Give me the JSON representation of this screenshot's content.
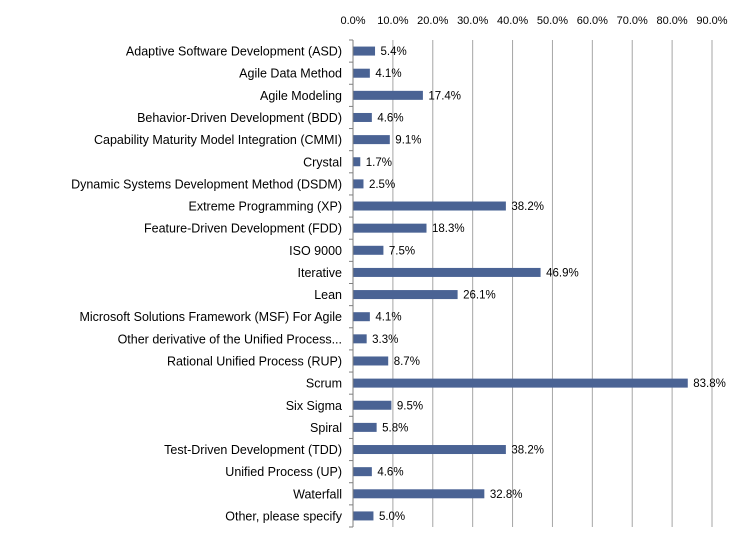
{
  "chart_data": {
    "type": "bar",
    "orientation": "horizontal",
    "title": "",
    "xlabel": "",
    "ylabel": "",
    "xlim": [
      0,
      90
    ],
    "x_ticks": [
      "0.0%",
      "10.0%",
      "20.0%",
      "30.0%",
      "40.0%",
      "50.0%",
      "60.0%",
      "70.0%",
      "80.0%",
      "90.0%"
    ],
    "x_axis_position": "top",
    "grid": true,
    "legend": "none",
    "bar_color": "#4a6394",
    "categories": [
      "Adaptive Software Development (ASD)",
      "Agile Data Method",
      "Agile Modeling",
      "Behavior-Driven Development (BDD)",
      "Capability Maturity Model Integration (CMMI)",
      "Crystal",
      "Dynamic Systems Development Method (DSDM)",
      "Extreme Programming (XP)",
      "Feature-Driven Development (FDD)",
      "ISO 9000",
      "Iterative",
      "Lean",
      "Microsoft Solutions Framework (MSF) For Agile",
      "Other derivative of the Unified Process...",
      "Rational Unified Process (RUP)",
      "Scrum",
      "Six Sigma",
      "Spiral",
      "Test-Driven Development (TDD)",
      "Unified Process (UP)",
      "Waterfall",
      "Other, please specify"
    ],
    "values": [
      5.4,
      4.1,
      17.4,
      4.6,
      9.1,
      1.7,
      2.5,
      38.2,
      18.3,
      7.5,
      46.9,
      26.1,
      4.1,
      3.3,
      8.7,
      83.8,
      9.5,
      5.8,
      38.2,
      4.6,
      32.8,
      5.0
    ],
    "value_labels": [
      "5.4%",
      "4.1%",
      "17.4%",
      "4.6%",
      "9.1%",
      "1.7%",
      "2.5%",
      "38.2%",
      "18.3%",
      "7.5%",
      "46.9%",
      "26.1%",
      "4.1%",
      "3.3%",
      "8.7%",
      "83.8%",
      "9.5%",
      "5.8%",
      "38.2%",
      "4.6%",
      "32.8%",
      "5.0%"
    ]
  }
}
